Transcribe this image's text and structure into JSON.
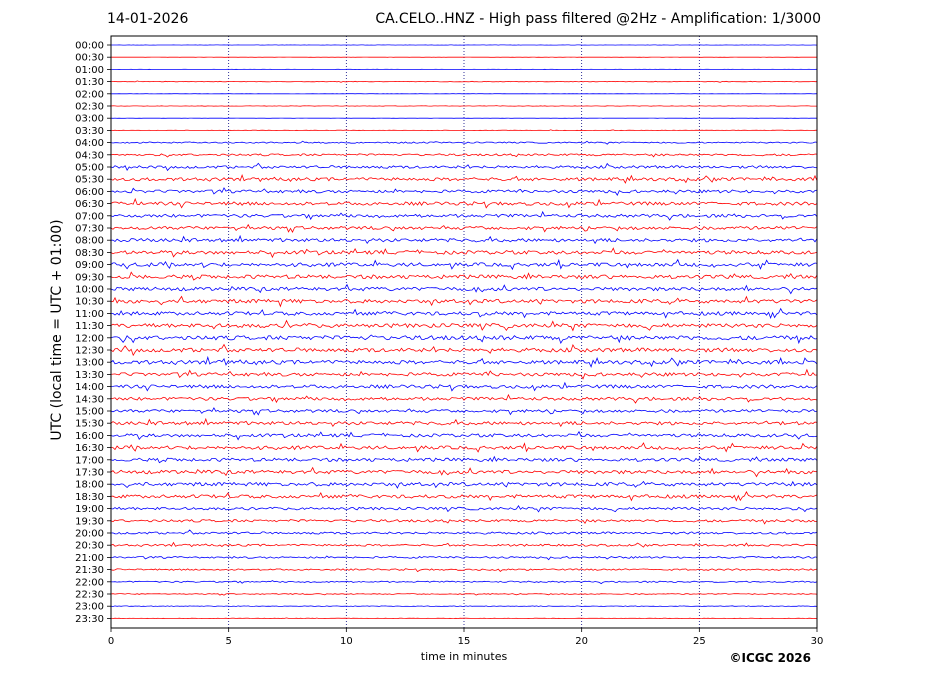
{
  "header": {
    "date": "14-01-2026",
    "title": "CA.CELO..HNZ - High pass filtered @2Hz - Amplification: 1/3000"
  },
  "footer": {
    "credit": "©ICGC 2026"
  },
  "colors": {
    "odd_trace": "#ff0000",
    "even_trace": "#0000ff",
    "gridline": "#000080"
  },
  "chart_data": {
    "type": "line",
    "title": "CA.CELO..HNZ - High pass filtered @2Hz - Amplification: 1/3000",
    "xlabel": "time in minutes",
    "ylabel": "UTC (local time = UTC + 01:00)",
    "xlim": [
      0,
      30
    ],
    "xticks": [
      "0",
      "5",
      "10",
      "15",
      "20",
      "25",
      "30"
    ],
    "vertical_grid_minutes": [
      5,
      10,
      15,
      20,
      25
    ],
    "row_labels": [
      "00:00",
      "00:30",
      "01:00",
      "01:30",
      "02:00",
      "02:30",
      "03:00",
      "03:30",
      "04:00",
      "04:30",
      "05:00",
      "05:30",
      "06:00",
      "06:30",
      "07:00",
      "07:30",
      "08:00",
      "08:30",
      "09:00",
      "09:30",
      "10:00",
      "10:30",
      "11:00",
      "11:30",
      "12:00",
      "12:30",
      "13:00",
      "13:30",
      "14:00",
      "14:30",
      "15:00",
      "15:30",
      "16:00",
      "16:30",
      "17:00",
      "17:30",
      "18:00",
      "18:30",
      "19:00",
      "19:30",
      "20:00",
      "20:30",
      "21:00",
      "21:30",
      "22:00",
      "22:30",
      "23:00",
      "23:30"
    ],
    "relative_activity": [
      0.05,
      0.04,
      0.04,
      0.12,
      0.05,
      0.08,
      0.04,
      0.1,
      0.3,
      0.45,
      0.6,
      0.7,
      0.65,
      0.75,
      0.7,
      0.7,
      0.75,
      0.8,
      0.8,
      0.85,
      0.8,
      0.85,
      0.8,
      0.9,
      0.95,
      0.9,
      0.85,
      0.75,
      0.75,
      0.7,
      0.65,
      0.75,
      0.7,
      0.75,
      0.75,
      0.8,
      0.8,
      0.75,
      0.6,
      0.55,
      0.5,
      0.45,
      0.4,
      0.35,
      0.3,
      0.2,
      0.15,
      0.1
    ]
  }
}
